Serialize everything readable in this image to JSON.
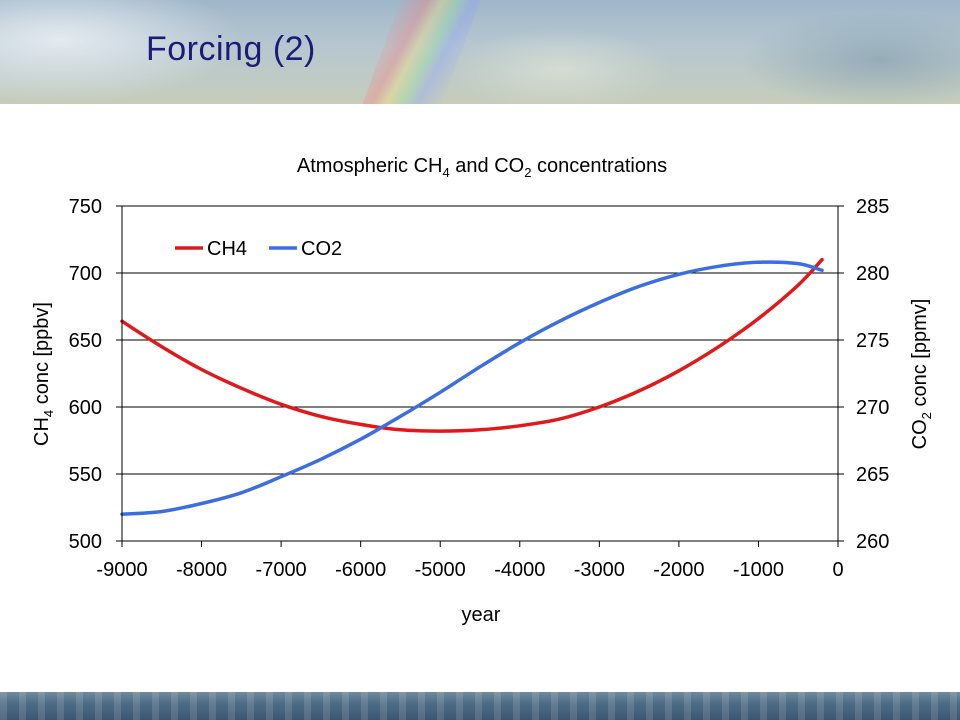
{
  "slide": {
    "title": "Forcing (2)"
  },
  "chart_data": {
    "type": "line",
    "title": "Atmospheric CH4 and CO2 concentrations",
    "title_parts": {
      "a": "Atmospheric CH",
      "sub1": "4",
      "b": " and CO",
      "sub2": "2",
      "c": " concentrations"
    },
    "xlabel": "year",
    "ylabel_left": "CH4 conc [ppbv]",
    "ylabel_left_parts": {
      "a": "CH",
      "sub": "4",
      "b": " conc [ppbv]"
    },
    "ylabel_right": "CO2 conc [ppmv]",
    "ylabel_right_parts": {
      "a": "CO",
      "sub": "2",
      "b": " conc [ppmv]"
    },
    "xlim": [
      -9000,
      0
    ],
    "xticks": [
      -9000,
      -8000,
      -7000,
      -6000,
      -5000,
      -4000,
      -3000,
      -2000,
      -1000,
      0
    ],
    "ylim_left": [
      500,
      750
    ],
    "yticks_left": [
      500,
      550,
      600,
      650,
      700,
      750
    ],
    "ylim_right": [
      260,
      285
    ],
    "yticks_right": [
      260,
      265,
      270,
      275,
      280,
      285
    ],
    "grid": "horizontal",
    "legend_position": "top-left",
    "series": [
      {
        "name": "CH4",
        "axis": "left",
        "color": "#e01a1a",
        "x": [
          -9000,
          -8500,
          -8000,
          -7500,
          -7000,
          -6500,
          -6000,
          -5500,
          -5000,
          -4500,
          -4000,
          -3500,
          -3000,
          -2500,
          -2000,
          -1500,
          -1000,
          -500,
          -200
        ],
        "y": [
          664,
          645,
          628,
          614,
          602,
          593,
          587,
          583,
          582,
          583,
          586,
          591,
          600,
          612,
          627,
          645,
          666,
          691,
          710
        ]
      },
      {
        "name": "CO2",
        "axis": "right",
        "color": "#3c6ee0",
        "x": [
          -9000,
          -8500,
          -8000,
          -7500,
          -7000,
          -6500,
          -6000,
          -5500,
          -5000,
          -4500,
          -4000,
          -3500,
          -3000,
          -2500,
          -2000,
          -1500,
          -1000,
          -500,
          -200
        ],
        "y": [
          262.0,
          262.2,
          262.8,
          263.6,
          264.8,
          266.1,
          267.6,
          269.3,
          271.1,
          273.0,
          274.8,
          276.4,
          277.8,
          279.0,
          279.9,
          280.5,
          280.8,
          280.7,
          280.2
        ]
      }
    ]
  }
}
